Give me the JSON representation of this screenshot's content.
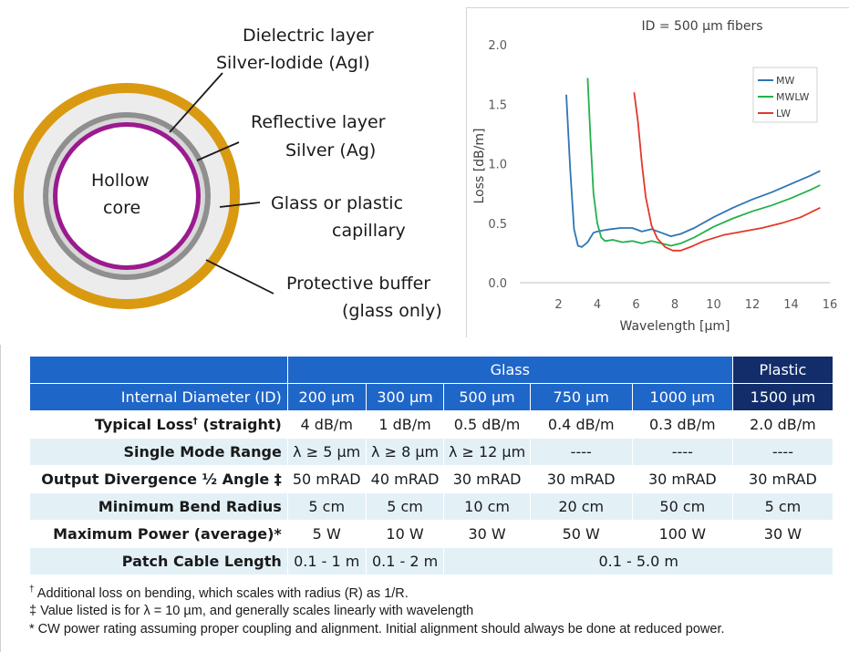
{
  "diagram": {
    "labels": {
      "dielectric_1": "Dielectric layer",
      "dielectric_2": "Silver-Iodide (AgI)",
      "reflective_1": "Reflective layer",
      "reflective_2": "Silver (Ag)",
      "core_1": "Hollow",
      "core_2": "core",
      "capillary_1": "Glass or plastic",
      "capillary_2": "capillary",
      "buffer_1": "Protective buffer",
      "buffer_2": "(glass only)"
    },
    "colors": {
      "buffer": "#d99a12",
      "capillary": "#ececec",
      "reflective": "#8f8f8f",
      "dielectric": "#9b1a8f",
      "core": "#ffffff"
    }
  },
  "chart_data": {
    "type": "line",
    "title": "ID = 500 µm fibers",
    "xlabel": "Wavelength [µm]",
    "ylabel": "Loss [dB/m]",
    "xlim": [
      0,
      16
    ],
    "ylim": [
      0.0,
      2.0
    ],
    "xticks": [
      "2",
      "4",
      "6",
      "8",
      "10",
      "12",
      "14",
      "16"
    ],
    "yticks": [
      "0.0",
      "0.5",
      "1.0",
      "1.5",
      "2.0"
    ],
    "grid": false,
    "legend": "top-right",
    "series": [
      {
        "name": "MW",
        "color": "#2e75b6",
        "x": [
          2.4,
          2.6,
          2.8,
          3.0,
          3.2,
          3.5,
          3.8,
          4.0,
          4.3,
          4.7,
          5.2,
          5.8,
          6.3,
          6.8,
          7.3,
          7.8,
          8.3,
          9.0,
          10,
          11,
          12,
          13,
          14,
          15,
          15.5
        ],
        "y": [
          1.58,
          0.95,
          0.45,
          0.31,
          0.3,
          0.34,
          0.42,
          0.43,
          0.44,
          0.45,
          0.46,
          0.46,
          0.43,
          0.45,
          0.42,
          0.39,
          0.41,
          0.46,
          0.55,
          0.63,
          0.7,
          0.76,
          0.83,
          0.9,
          0.94
        ]
      },
      {
        "name": "MWLW",
        "color": "#22b14c",
        "x": [
          3.5,
          3.65,
          3.8,
          4.0,
          4.2,
          4.4,
          4.8,
          5.3,
          5.8,
          6.3,
          6.8,
          7.3,
          7.8,
          8.3,
          9.0,
          10,
          11,
          12,
          13,
          14,
          15,
          15.5
        ],
        "y": [
          1.72,
          1.2,
          0.75,
          0.5,
          0.38,
          0.35,
          0.36,
          0.34,
          0.35,
          0.33,
          0.35,
          0.33,
          0.31,
          0.33,
          0.38,
          0.47,
          0.54,
          0.6,
          0.65,
          0.71,
          0.78,
          0.82
        ]
      },
      {
        "name": "LW",
        "color": "#e2382a",
        "x": [
          5.9,
          6.1,
          6.3,
          6.5,
          6.8,
          7.1,
          7.5,
          7.9,
          8.3,
          8.8,
          9.5,
          10.5,
          11.5,
          12.5,
          13.5,
          14.5,
          15.0,
          15.5
        ],
        "y": [
          1.6,
          1.35,
          1.0,
          0.72,
          0.48,
          0.37,
          0.3,
          0.27,
          0.27,
          0.3,
          0.35,
          0.4,
          0.43,
          0.46,
          0.5,
          0.55,
          0.59,
          0.63
        ]
      }
    ]
  },
  "table": {
    "group_glass": "Glass",
    "group_plastic": "Plastic",
    "header_label": "Internal Diameter (ID)",
    "columns": [
      "200 µm",
      "300 µm",
      "500 µm",
      "750 µm",
      "1000 µm",
      "1500  µm"
    ],
    "rows": [
      {
        "label": "Typical Loss",
        "mark": "†",
        "label_tail": " (straight)",
        "cells": [
          "4 dB/m",
          "1 dB/m",
          "0.5 dB/m",
          "0.4 dB/m",
          "0.3 dB/m",
          "2.0 dB/m"
        ]
      },
      {
        "label": "Single Mode Range",
        "cells": [
          "λ ≥ 5 µm",
          "λ ≥ 8 µm",
          "λ ≥ 12 µm",
          "----",
          "----",
          "----"
        ]
      },
      {
        "label": "Output Divergence ½ Angle ‡",
        "cells": [
          "50 mRAD",
          "40 mRAD",
          "30 mRAD",
          "30 mRAD",
          "30 mRAD",
          "30 mRAD"
        ]
      },
      {
        "label": "Minimum Bend Radius",
        "cells": [
          "5 cm",
          "5 cm",
          "10 cm",
          "20 cm",
          "50 cm",
          "5 cm"
        ]
      },
      {
        "label": "Maximum Power (average)*",
        "cells": [
          "5 W",
          "10 W",
          "30 W",
          "50 W",
          "100 W",
          "30 W"
        ]
      },
      {
        "label": "Patch Cable Length",
        "cells": [
          "0.1 - 1 m",
          "0.1 - 2 m",
          "0.1 - 5.0 m"
        ]
      }
    ]
  },
  "footnotes": {
    "f1_mark": "†",
    "f1_text": " Additional loss on bending, which scales with radius (R) as 1/R.",
    "f2_mark": "‡",
    "f2_text": " Value listed is for λ = 10 µm, and generally scales linearly with wavelength",
    "f3_mark": "*",
    "f3_text": " CW power rating assuming proper coupling and alignment. Initial alignment should always be done at reduced power."
  }
}
